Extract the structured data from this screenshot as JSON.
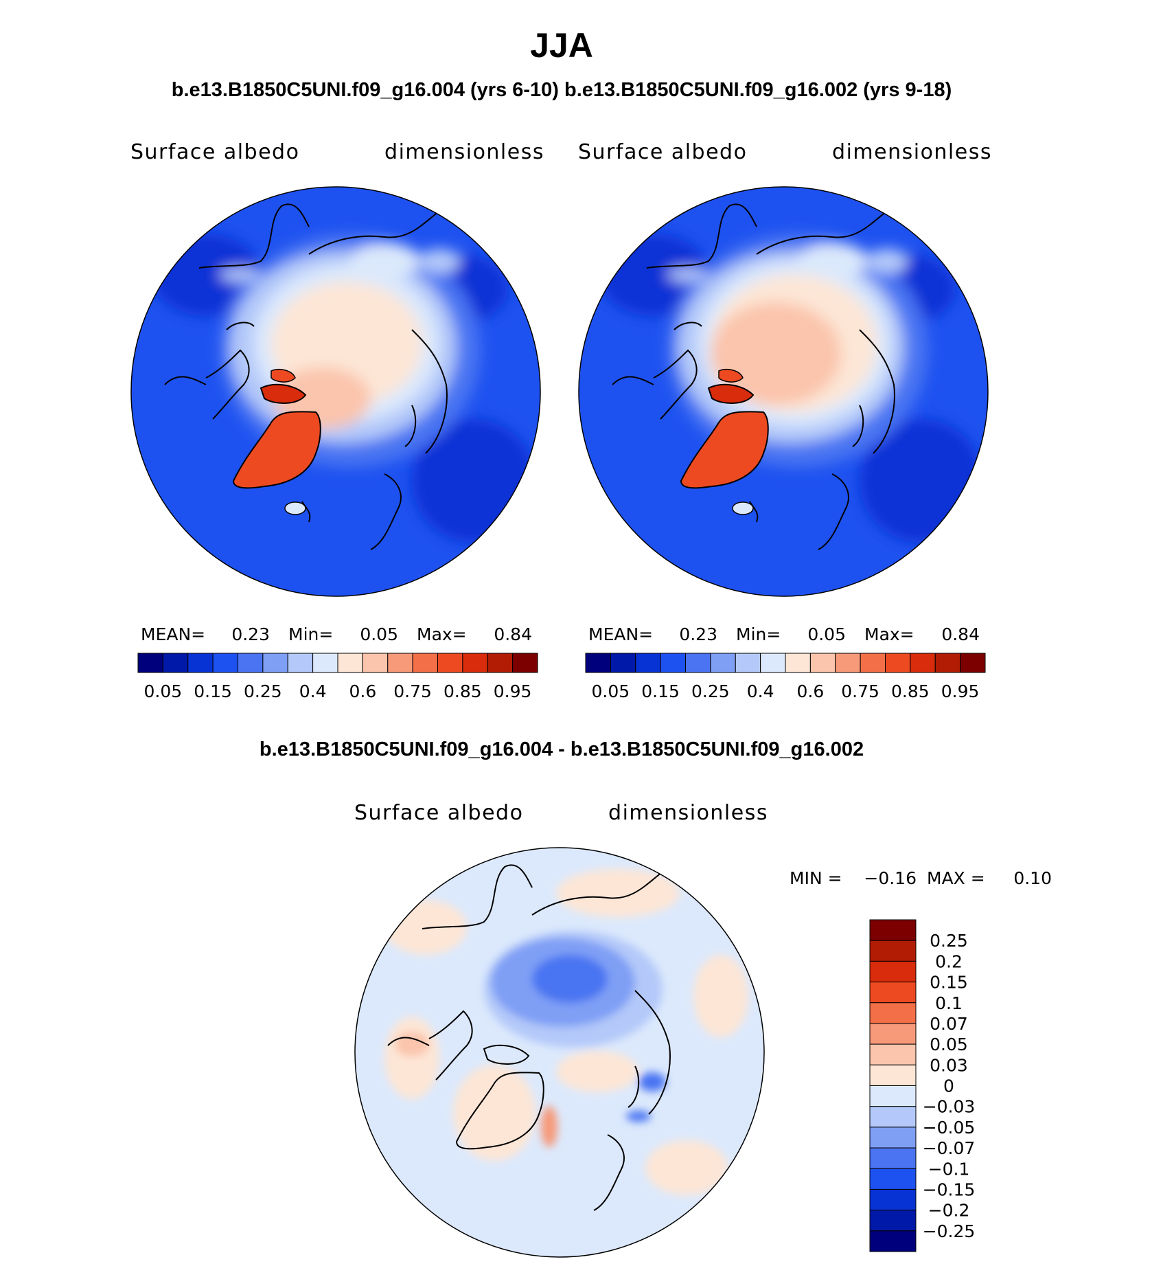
{
  "page": {
    "season_title": "JJA",
    "top_header": "b.e13.B1850C5UNI.f09_g16.004 (yrs 6-10) b.e13.B1850C5UNI.f09_g16.002 (yrs 9-18)",
    "diff_header": "b.e13.B1850C5UNI.f09_g16.004 - b.e13.B1850C5UNI.f09_g16.002"
  },
  "chart_data": [
    {
      "type": "heatmap",
      "name": "panel-1",
      "variable": "Surface albedo",
      "units": "dimensionless",
      "projection": "north polar stereographic",
      "stats": {
        "mean_label": "MEAN=",
        "mean": "0.23",
        "min_label": "Min=",
        "min": "0.05",
        "max_label": "Max=",
        "max": "0.84"
      },
      "colorbar_ticks": [
        "0.05",
        "0.15",
        "0.25",
        "0.4",
        "0.6",
        "0.75",
        "0.85",
        "0.95"
      ]
    },
    {
      "type": "heatmap",
      "name": "panel-2",
      "variable": "Surface albedo",
      "units": "dimensionless",
      "projection": "north polar stereographic",
      "stats": {
        "mean_label": "MEAN=",
        "mean": "0.23",
        "min_label": "Min=",
        "min": "0.05",
        "max_label": "Max=",
        "max": "0.84"
      },
      "colorbar_ticks": [
        "0.05",
        "0.15",
        "0.25",
        "0.4",
        "0.6",
        "0.75",
        "0.85",
        "0.95"
      ]
    },
    {
      "type": "heatmap",
      "name": "difference",
      "variable": "Surface albedo",
      "units": "dimensionless",
      "projection": "north polar stereographic",
      "stats": {
        "min_label": "MIN =",
        "min": "−0.16",
        "max_label": "MAX =",
        "max": "0.10"
      },
      "colorbar_ticks": [
        "0.25",
        "0.2",
        "0.15",
        "0.1",
        "0.07",
        "0.05",
        "0.03",
        "0",
        "−0.03",
        "−0.05",
        "−0.07",
        "−0.1",
        "−0.15",
        "−0.2",
        "−0.25"
      ]
    }
  ],
  "colors": {
    "abs_scale": [
      "#00007c",
      "#0019a8",
      "#0733d5",
      "#1e52f0",
      "#4a74f2",
      "#7f9ff5",
      "#b4c9f9",
      "#dce9fc",
      "#fde6d6",
      "#fbc4ac",
      "#f69a79",
      "#f26f48",
      "#ee4a22",
      "#d82c0c",
      "#b21c05",
      "#7c0000"
    ],
    "diff_scale": [
      "#7c0000",
      "#b21c05",
      "#d82c0c",
      "#ee4a22",
      "#f26f48",
      "#f69a79",
      "#fbc4ac",
      "#fde6d6",
      "#dce9fc",
      "#b4c9f9",
      "#7f9ff5",
      "#4a74f2",
      "#1e52f0",
      "#0733d5",
      "#0019a8",
      "#00007c"
    ]
  }
}
